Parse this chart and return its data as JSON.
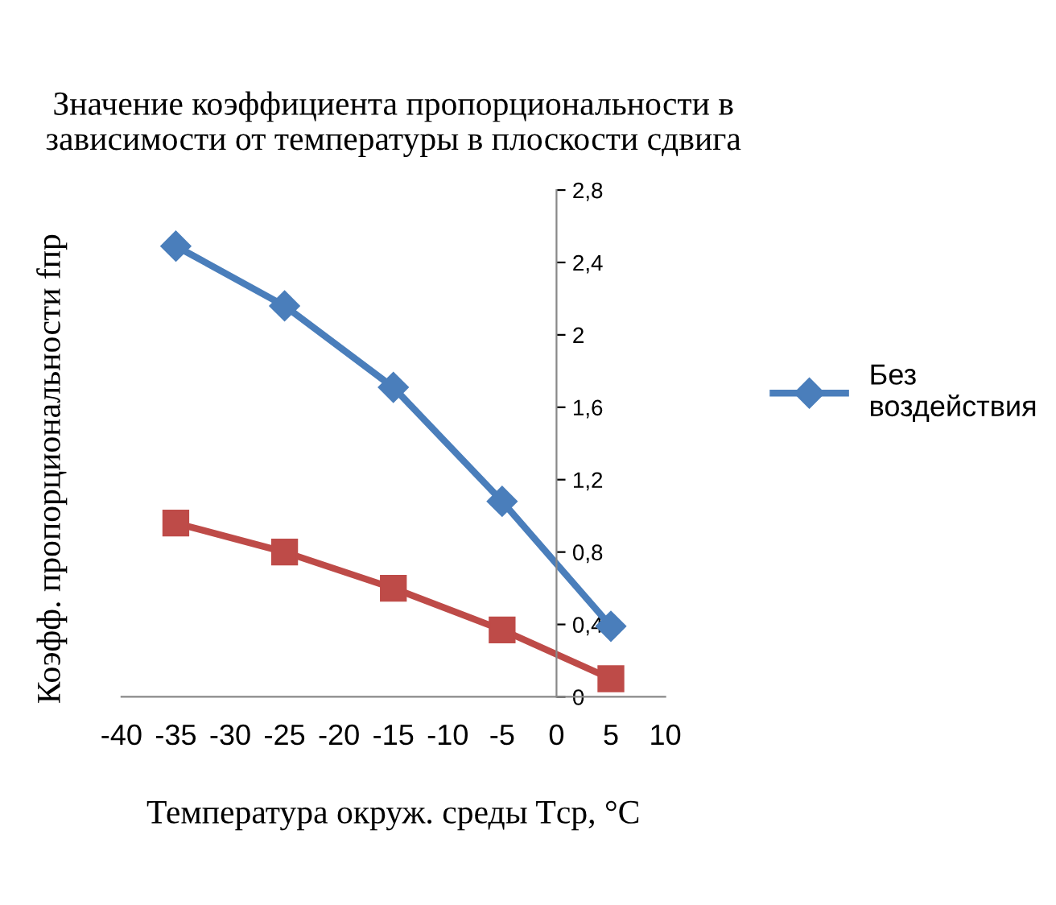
{
  "chart_data": {
    "type": "line",
    "title": "Значение коэффициента пропорциональности в\nзависимости от температуры в плоскости сдвига",
    "xlabel": "Температура окруж. среды Tср, °C",
    "ylabel": "Коэфф. пропорциональности fпр",
    "x": [
      -35,
      -25,
      -15,
      -5,
      5
    ],
    "series": [
      {
        "name": "Без\nвоздействия",
        "color": "#4a7ebb",
        "marker": "diamond",
        "values": [
          2.49,
          2.16,
          1.71,
          1.08,
          0.39
        ]
      },
      {
        "color": "#be4b48",
        "marker": "square",
        "values": [
          0.96,
          0.8,
          0.6,
          0.37,
          0.1
        ]
      }
    ],
    "xlim": [
      -40,
      10
    ],
    "xticks": [
      -40,
      -35,
      -30,
      -25,
      -20,
      -15,
      -10,
      -5,
      0,
      5,
      10
    ],
    "ylim": [
      0,
      2.8
    ],
    "yticks": [
      {
        "value": 0,
        "label": "0"
      },
      {
        "value": 0.4,
        "label": "0,4"
      },
      {
        "value": 0.8,
        "label": "0,8"
      },
      {
        "value": 1.2,
        "label": "1,2"
      },
      {
        "value": 1.6,
        "label": "1,6"
      },
      {
        "value": 2,
        "label": "2"
      },
      {
        "value": 2.4,
        "label": "2,4"
      },
      {
        "value": 2.8,
        "label": "2,8"
      }
    ],
    "grid": false,
    "legend": "right",
    "line_style": "solid"
  }
}
